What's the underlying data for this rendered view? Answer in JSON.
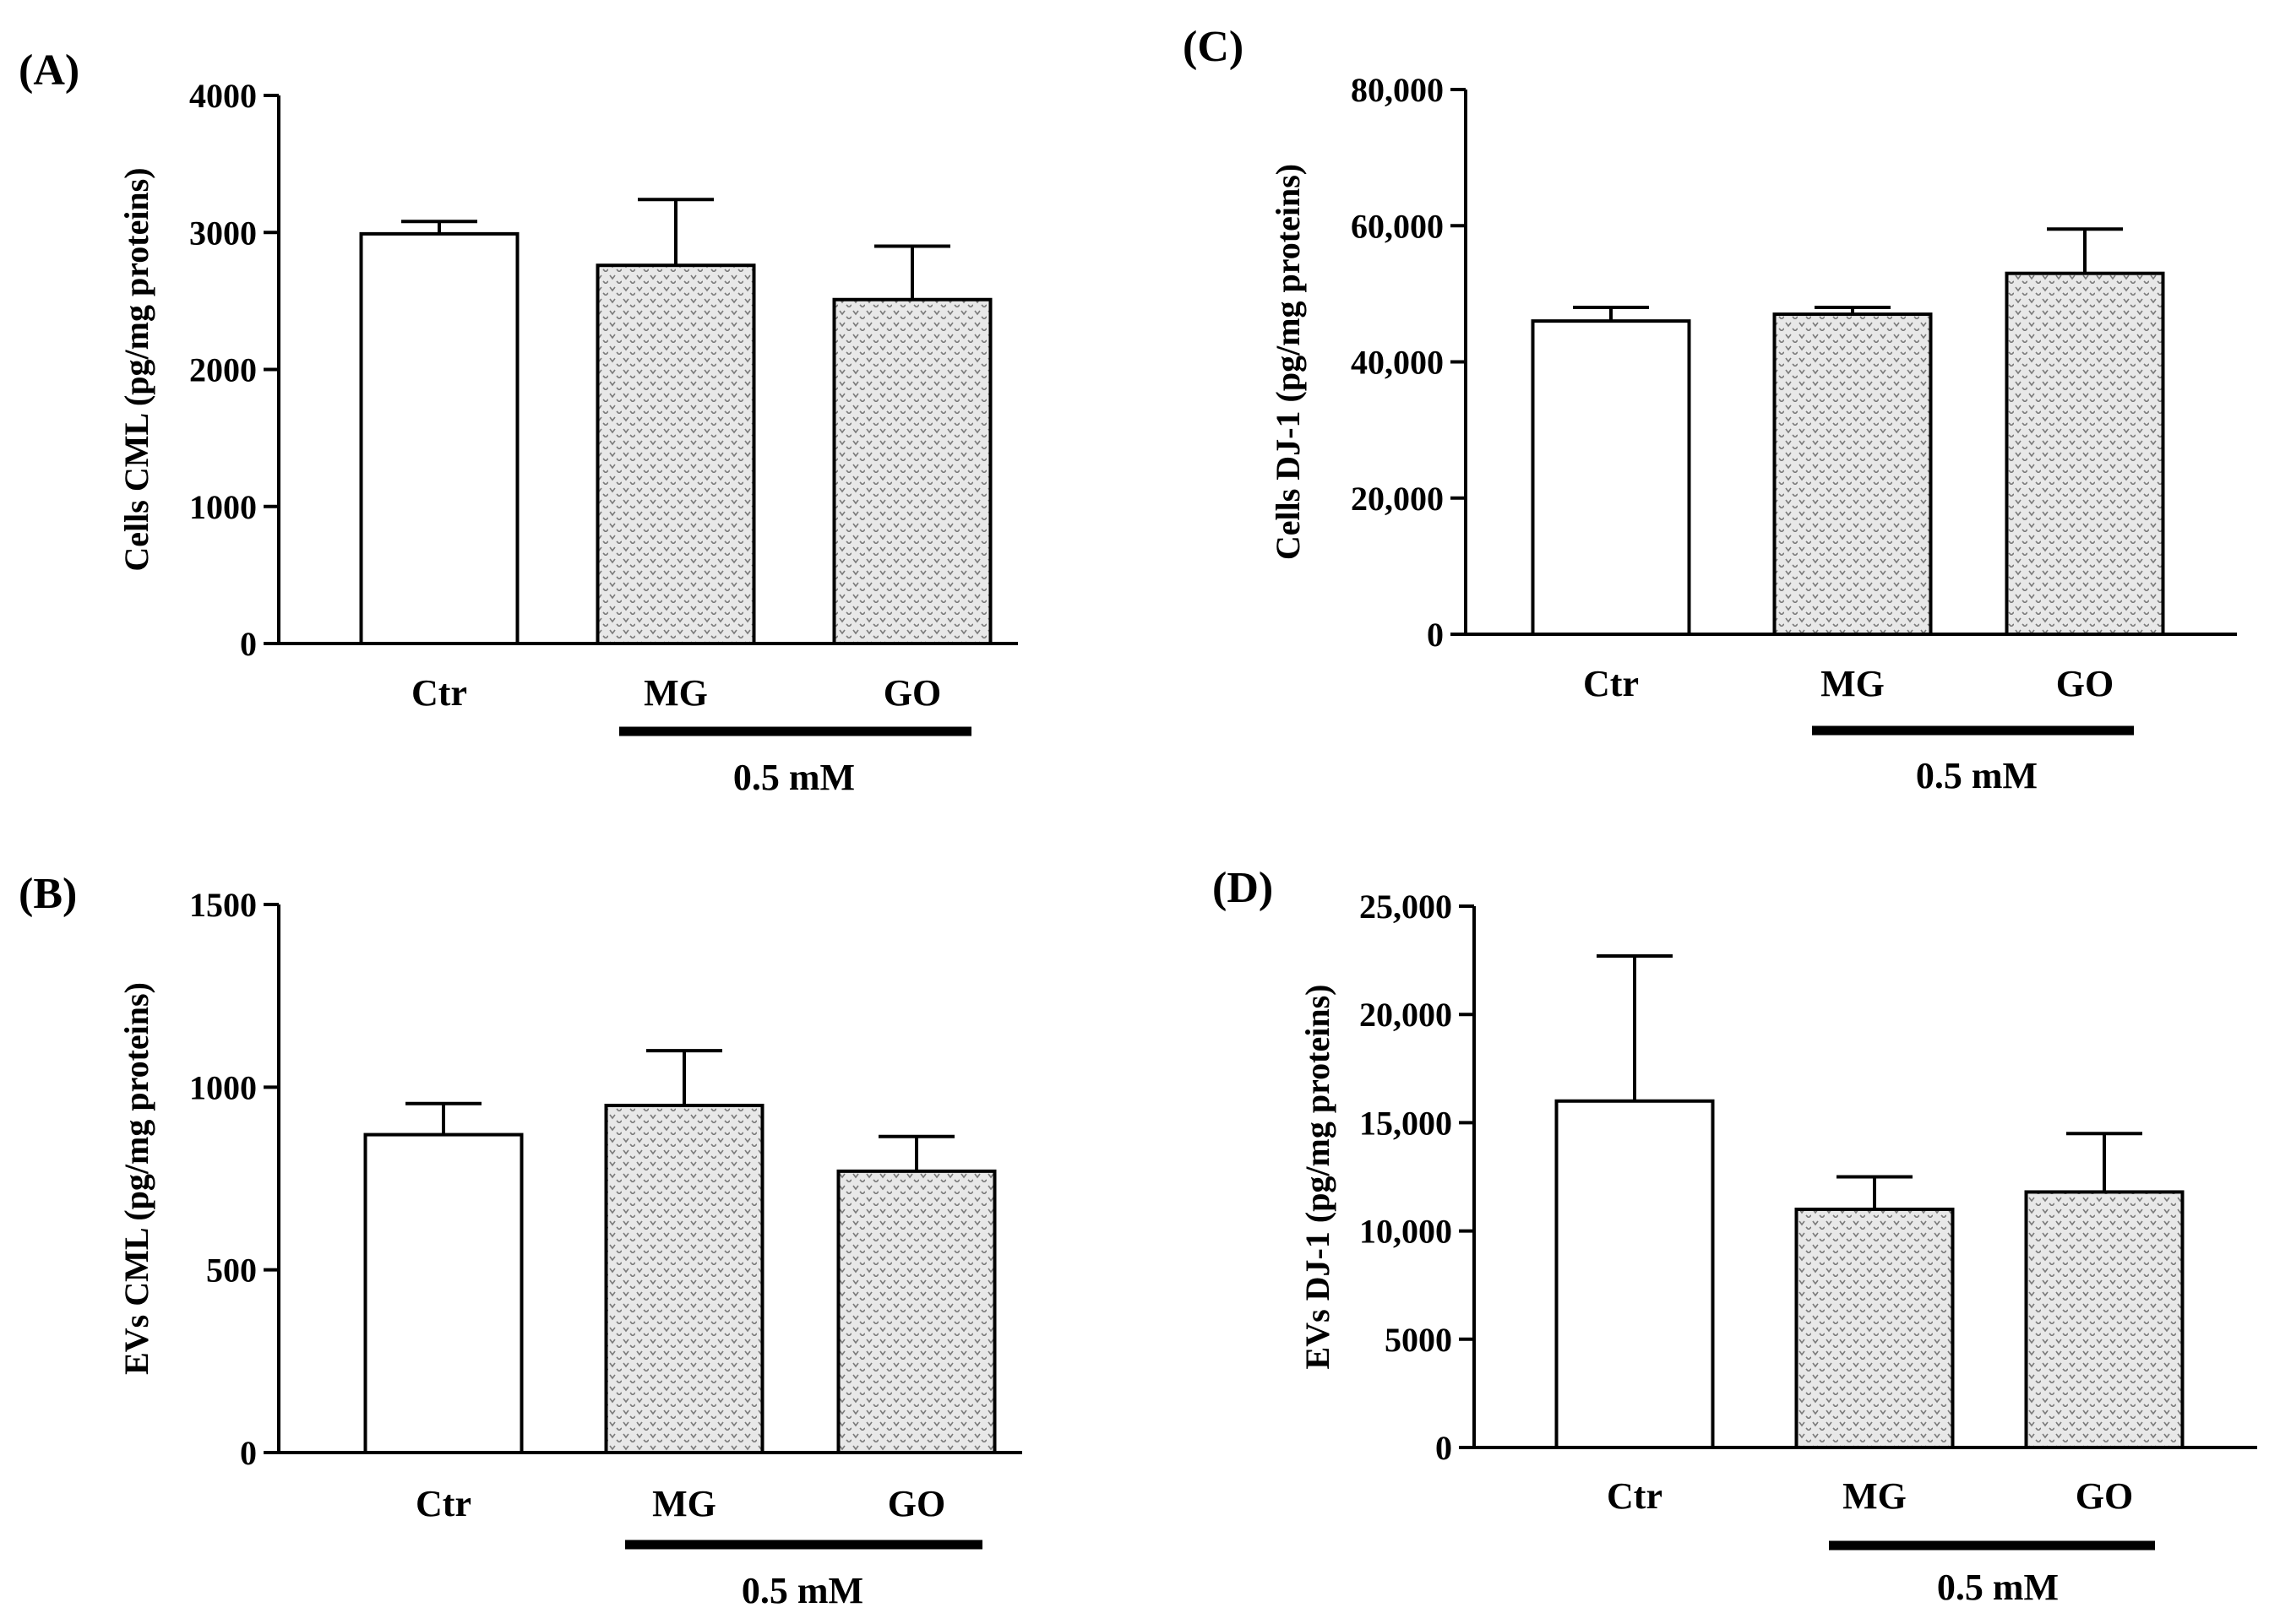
{
  "chart_data": [
    {
      "panel": "(A)",
      "type": "bar",
      "ylabel": "Cells CML (pg/mg proteins)",
      "categories": [
        "Ctr",
        "MG",
        "GO"
      ],
      "values": [
        2990,
        2760,
        2510
      ],
      "errors": [
        90,
        480,
        390
      ],
      "ylim": [
        0,
        4000
      ],
      "yticks": [
        "0",
        "1000",
        "2000",
        "3000",
        "4000"
      ],
      "group_label": "0.5 mM"
    },
    {
      "panel": "(B)",
      "type": "bar",
      "ylabel": "EVs CML (pg/mg proteins)",
      "categories": [
        "Ctr",
        "MG",
        "GO"
      ],
      "values": [
        870,
        950,
        770
      ],
      "errors": [
        85,
        150,
        95
      ],
      "ylim": [
        0,
        1500
      ],
      "yticks": [
        "0",
        "500",
        "1000",
        "1500"
      ],
      "group_label": "0.5 mM"
    },
    {
      "panel": "(C)",
      "type": "bar",
      "ylabel": "Cells DJ-1 (pg/mg proteins)",
      "categories": [
        "Ctr",
        "MG",
        "GO"
      ],
      "values": [
        46000,
        47000,
        53000
      ],
      "errors": [
        2000,
        1000,
        6500
      ],
      "ylim": [
        0,
        80000
      ],
      "yticks": [
        "0",
        "20,000",
        "40,000",
        "60,000",
        "80,000"
      ],
      "group_label": "0.5 mM"
    },
    {
      "panel": "(D)",
      "type": "bar",
      "ylabel": "EVs DJ-1 (pg/mg proteins)",
      "categories": [
        "Ctr",
        "MG",
        "GO"
      ],
      "values": [
        16000,
        11000,
        11800
      ],
      "errors": [
        6700,
        1500,
        2700
      ],
      "ylim": [
        0,
        25000
      ],
      "yticks": [
        "0",
        "5000",
        "10,000",
        "15,000",
        "20,000",
        "25,000"
      ],
      "group_label": "0.5 mM"
    }
  ],
  "colors": {
    "ctr_fill": "#ffffff",
    "treated_fill": "#e6e6e6",
    "pattern_mark": "#7a7a7a",
    "ink": "#000000"
  }
}
